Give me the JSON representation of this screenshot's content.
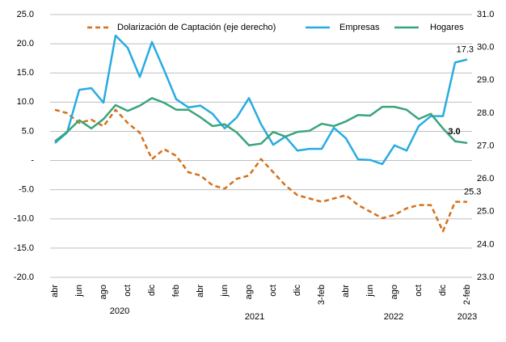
{
  "chart_data": {
    "type": "line",
    "categories": [
      "abr",
      null,
      "jun",
      null,
      "ago",
      null,
      "oct",
      null,
      "dic",
      null,
      "feb",
      null,
      "abr",
      null,
      "jun",
      null,
      "ago",
      null,
      "oct",
      null,
      "dic",
      null,
      "3-feb",
      null,
      "abr",
      null,
      "jun",
      null,
      "ago",
      null,
      "oct",
      null,
      "dic",
      null,
      "2-feb"
    ],
    "year_labels": [
      "2020",
      "2021",
      "2022",
      "2023"
    ],
    "series": [
      {
        "name": "Dolarización de Captación (eje derecho)",
        "color": "#d4701c",
        "axis": "y2",
        "dashed": true,
        "values": [
          28.1,
          28.0,
          27.7,
          27.8,
          27.6,
          28.1,
          27.7,
          27.4,
          26.6,
          26.9,
          26.7,
          26.2,
          26.1,
          25.8,
          25.7,
          26.0,
          26.1,
          26.6,
          26.2,
          25.8,
          25.5,
          25.4,
          25.3,
          25.4,
          25.5,
          25.2,
          25.0,
          24.8,
          24.9,
          25.1,
          25.2,
          25.2,
          24.4,
          25.3,
          25.3
        ],
        "value_labels": [
          null,
          null,
          null,
          null,
          null,
          null,
          null,
          null,
          null,
          null,
          null,
          null,
          null,
          null,
          null,
          null,
          null,
          null,
          null,
          null,
          null,
          null,
          null,
          null,
          null,
          null,
          null,
          null,
          null,
          null,
          null,
          null,
          null,
          null,
          "25.3"
        ]
      },
      {
        "name": "Empresas",
        "color": "#29abe2",
        "values": [
          3.0,
          4.8,
          12.1,
          12.4,
          9.9,
          21.4,
          19.3,
          14.3,
          20.3,
          15.5,
          10.5,
          9.1,
          9.4,
          8.0,
          5.5,
          7.4,
          10.7,
          6.2,
          2.7,
          4.1,
          1.7,
          2.0,
          2.0,
          5.6,
          3.8,
          0.2,
          0.1,
          -0.6,
          2.6,
          1.7,
          5.9,
          7.6,
          7.6,
          16.8,
          17.3
        ],
        "value_labels": [
          null,
          null,
          null,
          null,
          null,
          null,
          null,
          null,
          null,
          null,
          null,
          null,
          null,
          null,
          null,
          null,
          null,
          null,
          null,
          null,
          null,
          null,
          null,
          null,
          null,
          null,
          null,
          null,
          null,
          null,
          null,
          null,
          null,
          null,
          "17.3"
        ]
      },
      {
        "name": "Hogares",
        "color": "#3aa57a",
        "values": [
          3.3,
          4.9,
          6.9,
          5.5,
          7.1,
          9.5,
          8.5,
          9.4,
          10.7,
          9.9,
          8.7,
          8.7,
          7.4,
          5.9,
          6.2,
          4.8,
          2.6,
          2.9,
          4.9,
          4.1,
          4.9,
          5.1,
          6.3,
          5.9,
          6.7,
          7.8,
          7.7,
          9.2,
          9.2,
          8.7,
          7.1,
          8.0,
          5.5,
          3.3,
          3.0
        ],
        "value_labels": [
          null,
          null,
          null,
          null,
          null,
          null,
          null,
          null,
          null,
          null,
          null,
          null,
          null,
          null,
          null,
          null,
          null,
          null,
          null,
          null,
          null,
          null,
          null,
          null,
          null,
          null,
          null,
          null,
          null,
          null,
          null,
          null,
          null,
          null,
          "3.0"
        ]
      }
    ],
    "ylim": [
      -20,
      25
    ],
    "yticks": [
      {
        "value": 25,
        "label": "25.0"
      },
      {
        "value": 20,
        "label": "20.0"
      },
      {
        "value": 15,
        "label": "15.0"
      },
      {
        "value": 10,
        "label": "10.0"
      },
      {
        "value": 5,
        "label": "5.0"
      },
      {
        "value": 0,
        "label": "-"
      },
      {
        "value": -5,
        "label": "-5.0"
      },
      {
        "value": -10,
        "label": "-10.0"
      },
      {
        "value": -15,
        "label": "-15.0"
      },
      {
        "value": -20,
        "label": "-20.0"
      }
    ],
    "y2lim": [
      23,
      31
    ],
    "y2ticks": [
      {
        "value": 31,
        "label": "31.0"
      },
      {
        "value": 30,
        "label": "30.0"
      },
      {
        "value": 29,
        "label": "29.0"
      },
      {
        "value": 28,
        "label": "28.0"
      },
      {
        "value": 27,
        "label": "27.0"
      },
      {
        "value": 26,
        "label": "26.0"
      },
      {
        "value": 25,
        "label": "25.0"
      },
      {
        "value": 24,
        "label": "24.0"
      },
      {
        "value": 23,
        "label": "23.0"
      }
    ],
    "grid": true
  }
}
